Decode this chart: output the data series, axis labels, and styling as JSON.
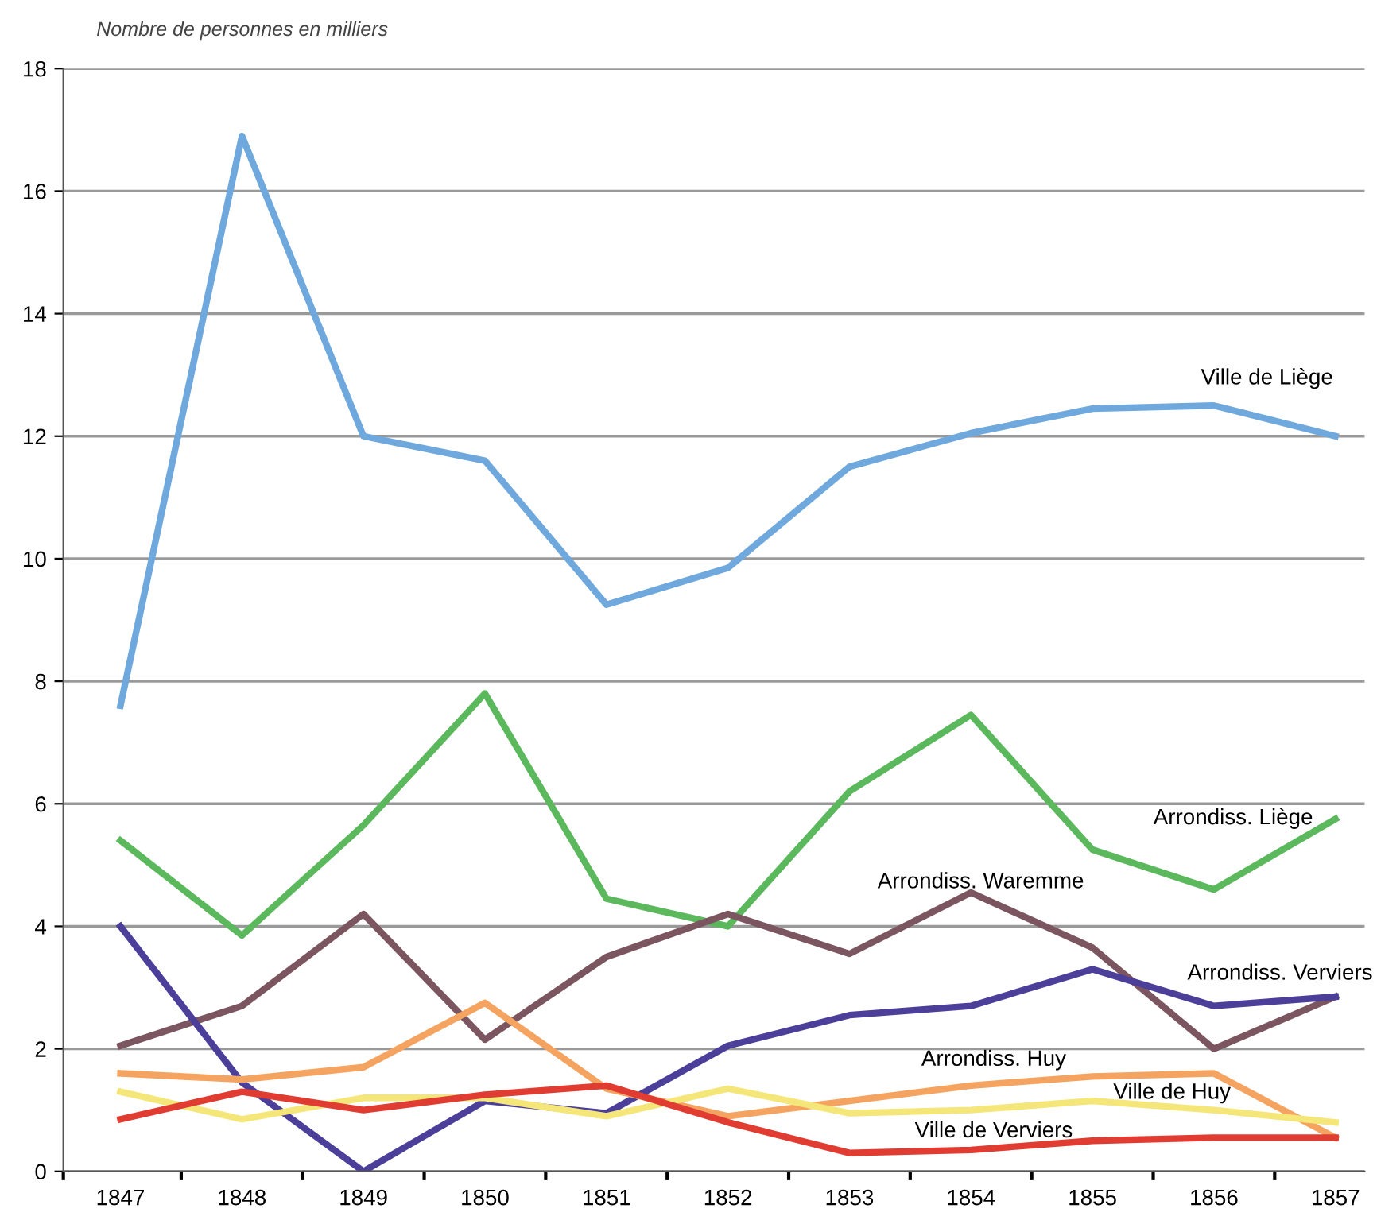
{
  "chart_data": {
    "type": "line",
    "ylabel": "Nombre de personnes en milliers",
    "categories": [
      "1847",
      "1848",
      "1849",
      "1850",
      "1851",
      "1852",
      "1853",
      "1854",
      "1855",
      "1856",
      "1857"
    ],
    "series": [
      {
        "name": "Ville de Liège",
        "color": "#6fa8dc",
        "values": [
          7.6,
          16.9,
          12.0,
          11.6,
          9.25,
          9.85,
          11.5,
          12.05,
          12.45,
          12.5,
          12.0
        ]
      },
      {
        "name": "Arrondiss. Liège",
        "color": "#5cb85c",
        "values": [
          5.4,
          3.85,
          5.65,
          7.8,
          4.45,
          4.0,
          6.2,
          7.45,
          5.25,
          4.6,
          5.75
        ]
      },
      {
        "name": "Arrondiss. Waremme",
        "color": "#7b5560",
        "values": [
          2.05,
          2.7,
          4.2,
          2.15,
          3.5,
          4.2,
          3.55,
          4.55,
          3.65,
          2.0,
          2.85
        ]
      },
      {
        "name": "Arrondiss. Verviers",
        "color": "#4b3f9a",
        "values": [
          4.0,
          1.45,
          0.0,
          1.15,
          0.95,
          2.05,
          2.55,
          2.7,
          3.3,
          2.7,
          2.85
        ]
      },
      {
        "name": "Arrondiss. Huy",
        "color": "#f4a460",
        "values": [
          1.6,
          1.5,
          1.7,
          2.75,
          1.35,
          0.9,
          1.15,
          1.4,
          1.55,
          1.6,
          0.55
        ]
      },
      {
        "name": "Ville de Huy",
        "color": "#f5e67a",
        "values": [
          1.3,
          0.85,
          1.2,
          1.2,
          0.9,
          1.35,
          0.95,
          1.0,
          1.15,
          1.0,
          0.8
        ]
      },
      {
        "name": "Ville de Verviers",
        "color": "#e03c31",
        "values": [
          0.85,
          1.3,
          1.0,
          1.25,
          1.4,
          0.8,
          0.3,
          0.35,
          0.5,
          0.55,
          0.55
        ]
      }
    ],
    "ylim": [
      0,
      18
    ],
    "yticks": [
      0,
      2,
      4,
      6,
      8,
      10,
      12,
      14,
      16,
      18
    ],
    "grid": "y",
    "legend": false,
    "marker": "none",
    "line_style": "solid"
  }
}
